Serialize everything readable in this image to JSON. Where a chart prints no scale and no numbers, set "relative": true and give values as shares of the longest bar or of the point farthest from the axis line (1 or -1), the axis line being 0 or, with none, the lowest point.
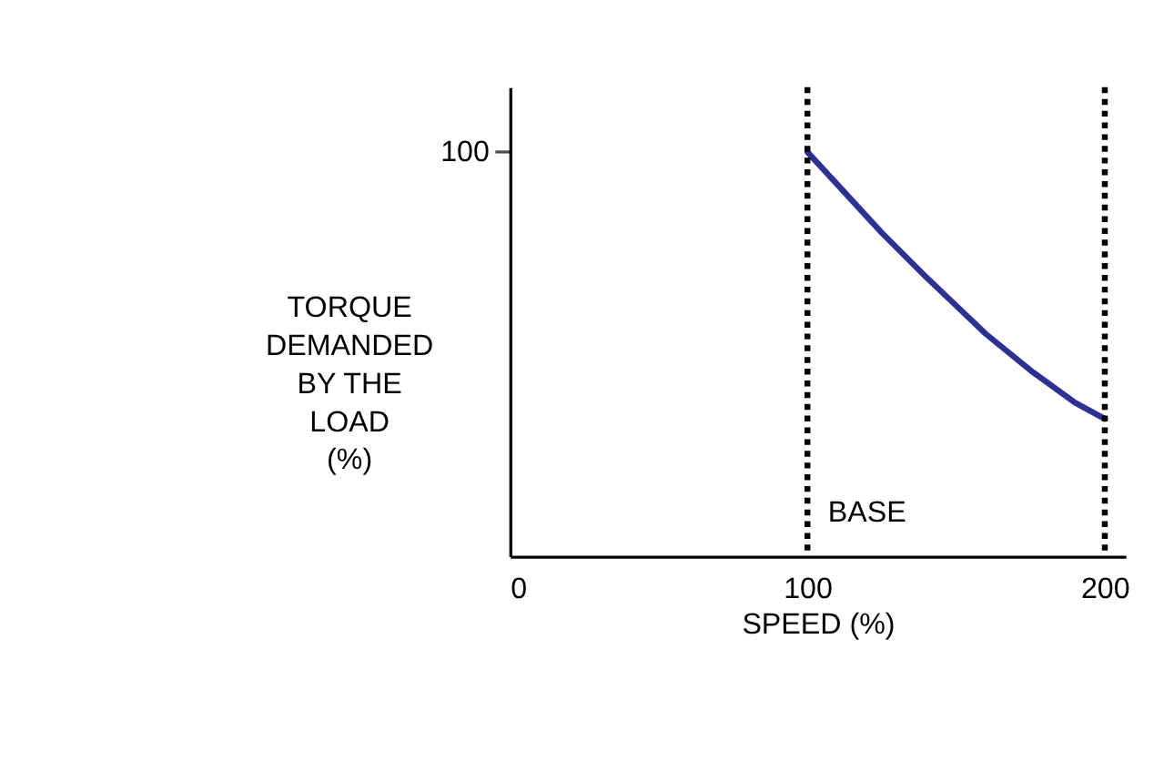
{
  "chart_data": {
    "type": "line",
    "relative": true,
    "xlabel": "SPEED (%)",
    "ylabel": "TORQUE\nDEMANDED\nBY THE\nLOAD\n(%)",
    "series": [
      {
        "color": "#2e3192",
        "x": [
          100,
          110,
          125,
          140,
          150,
          160,
          175,
          190,
          200
        ],
        "values": [
          1.0,
          0.92,
          0.8,
          0.69,
          0.62,
          0.55,
          0.46,
          0.38,
          0.34
        ]
      }
    ],
    "xlim": [
      0,
      207
    ],
    "xticks": [
      0,
      100,
      200
    ],
    "annotations": [
      "100"
    ],
    "ref_lines": [
      {
        "axis": "x",
        "value": 100,
        "label": "BASE",
        "color": "#000000",
        "line_style": "dotted"
      },
      {
        "axis": "x",
        "value": 200,
        "color": "#000000",
        "line_style": "dotted"
      }
    ],
    "grid": false,
    "marker": "none",
    "line_style": "solid"
  }
}
